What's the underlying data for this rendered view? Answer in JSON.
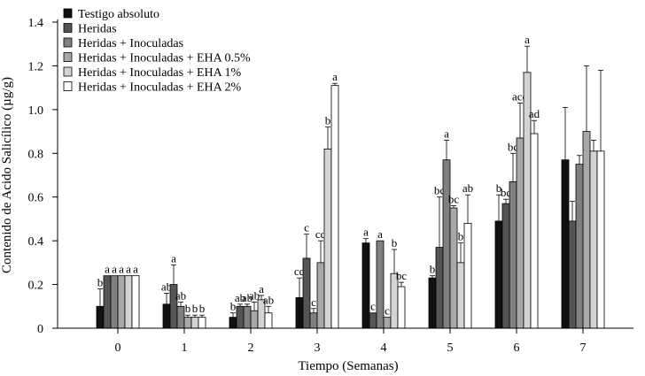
{
  "chart_data": {
    "type": "bar",
    "title": "",
    "xlabel": "Tiempo (Semanas)",
    "ylabel": "Contenido de Acido Salicílico (µg/g)",
    "ylim": [
      0,
      1.4
    ],
    "yticks": [
      "0",
      "0.2",
      "0.4",
      "0.6",
      "0.8",
      "1.0",
      "1.2",
      "1.4"
    ],
    "categories": [
      "0",
      "1",
      "2",
      "3",
      "4",
      "5",
      "6",
      "7"
    ],
    "legend_position": "top-left",
    "series": [
      {
        "name": "Testigo absoluto",
        "color": "#111111",
        "values": [
          0.1,
          0.11,
          0.05,
          0.14,
          0.39,
          0.23,
          0.49,
          0.77
        ],
        "errors": [
          0.08,
          0.05,
          0.02,
          0.09,
          0.02,
          0.01,
          0.12,
          0.24
        ],
        "letters": [
          "b",
          "ab",
          "b",
          "cd",
          "a",
          "b",
          "b",
          ""
        ]
      },
      {
        "name": "Heridas",
        "color": "#555555",
        "values": [
          0.24,
          0.2,
          0.1,
          0.32,
          0.07,
          0.37,
          0.57,
          0.49
        ],
        "errors": [
          0.0,
          0.09,
          0.01,
          0.11,
          0.0,
          0.23,
          0.02,
          0.09
        ],
        "letters": [
          "a",
          "a",
          "ab",
          "c",
          "c",
          "bc",
          "bc",
          ""
        ]
      },
      {
        "name": "Heridas + Inoculadas",
        "color": "#808080",
        "values": [
          0.24,
          0.1,
          0.1,
          0.07,
          0.4,
          0.77,
          0.67,
          0.75
        ],
        "errors": [
          0.0,
          0.02,
          0.01,
          0.02,
          0.0,
          0.09,
          0.13,
          0.04
        ],
        "letters": [
          "a",
          "ab",
          "ab",
          "c",
          "a",
          "a",
          "bc",
          ""
        ]
      },
      {
        "name": "Heridas + Inoculadas + EHA 0.5%",
        "color": "#a8a8a8",
        "values": [
          0.24,
          0.05,
          0.08,
          0.3,
          0.05,
          0.55,
          0.87,
          0.9
        ],
        "errors": [
          0.0,
          0.01,
          0.04,
          0.1,
          0.0,
          0.01,
          0.16,
          0.3
        ],
        "letters": [
          "a",
          "b",
          "ab",
          "cd",
          "c",
          "bc",
          "acd",
          ""
        ]
      },
      {
        "name": "Heridas + Inoculadas + EHA 1%",
        "color": "#d4d4d4",
        "values": [
          0.24,
          0.05,
          0.13,
          0.82,
          0.25,
          0.3,
          1.17,
          0.81
        ],
        "errors": [
          0.0,
          0.01,
          0.02,
          0.1,
          0.11,
          0.09,
          0.12,
          0.05
        ],
        "letters": [
          "a",
          "b",
          "a",
          "b",
          "b",
          "b",
          "a",
          ""
        ]
      },
      {
        "name": "Heridas + Inoculadas + EHA 2%",
        "color": "#ffffff",
        "values": [
          0.24,
          0.05,
          0.07,
          1.11,
          0.19,
          0.48,
          0.89,
          0.81
        ],
        "errors": [
          0.0,
          0.01,
          0.03,
          0.01,
          0.02,
          0.13,
          0.06,
          0.37
        ],
        "letters": [
          "a",
          "b",
          "ab",
          "a",
          "bc",
          "ab",
          "ad",
          ""
        ]
      }
    ]
  }
}
